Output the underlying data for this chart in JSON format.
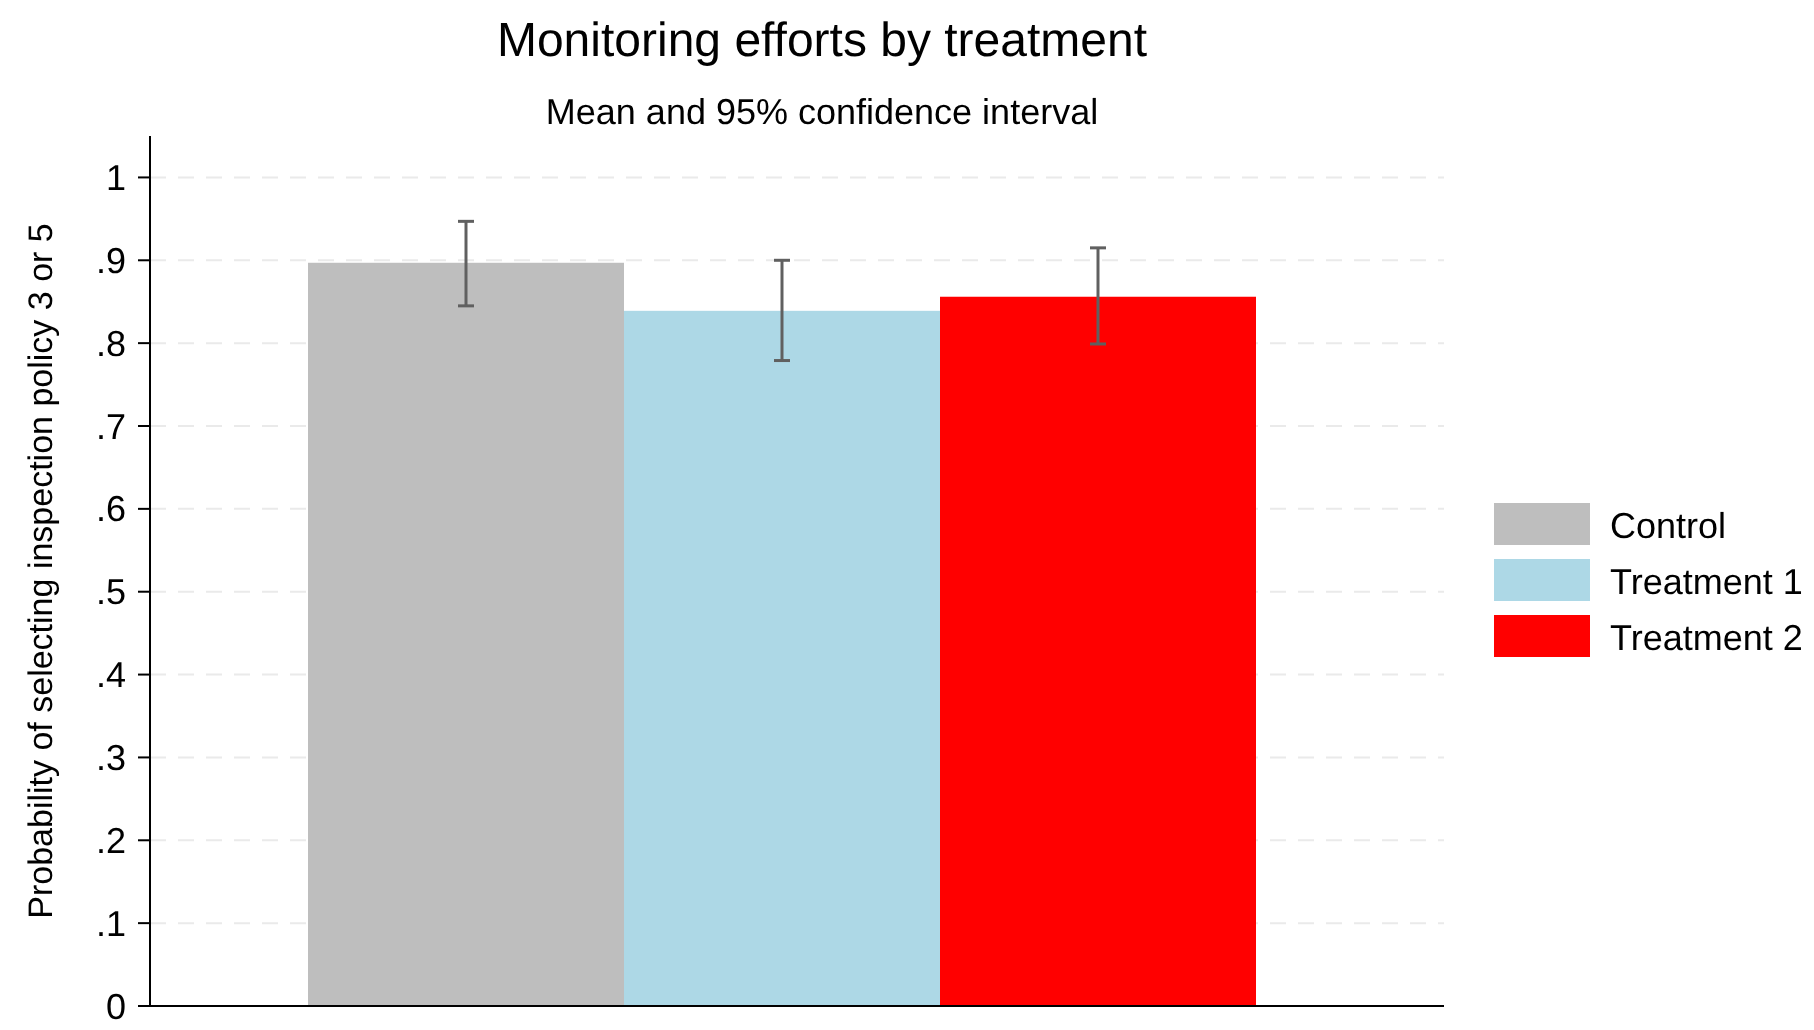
{
  "chart_data": {
    "type": "bar",
    "title": "Monitoring efforts by treatment",
    "subtitle": "Mean and 95% confidence interval",
    "ylabel": "Probability of selecting inspection policy 3 or 5",
    "categories": [
      null
    ],
    "series": [
      {
        "name": "Control",
        "color": "#bebebe",
        "values": [
          0.897
        ],
        "errors": [
          [
            0.845,
            0.947
          ]
        ]
      },
      {
        "name": "Treatment 1",
        "color": "#add8e6",
        "values": [
          0.839
        ],
        "errors": [
          [
            0.779,
            0.9
          ]
        ]
      },
      {
        "name": "Treatment 2",
        "color": "#ff0000",
        "values": [
          0.856
        ],
        "errors": [
          [
            0.799,
            0.915
          ]
        ]
      }
    ],
    "ylim": [
      0,
      1.05
    ],
    "yticks": [
      0,
      {
        "value": 0.1,
        "label": ".1"
      },
      {
        "value": 0.2,
        "label": ".2"
      },
      {
        "value": 0.3,
        "label": ".3"
      },
      {
        "value": 0.4,
        "label": ".4"
      },
      {
        "value": 0.5,
        "label": ".5"
      },
      {
        "value": 0.6,
        "label": ".6"
      },
      {
        "value": 0.7,
        "label": ".7"
      },
      {
        "value": 0.8,
        "label": ".8"
      },
      {
        "value": 0.9,
        "label": ".9"
      },
      1
    ],
    "grid": "y",
    "legend": "right"
  }
}
